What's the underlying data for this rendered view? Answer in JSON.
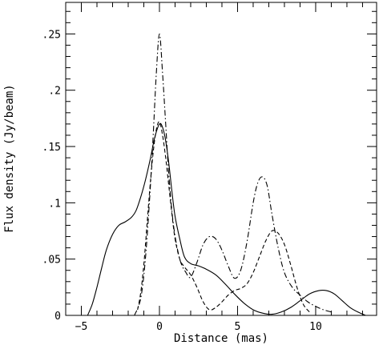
{
  "chart_data": {
    "type": "line",
    "title": "",
    "xlabel": "Distance (mas)",
    "ylabel": "Flux density (Jy/beam)",
    "xlim": [
      -6.0,
      13.9
    ],
    "ylim": [
      0,
      0.278
    ],
    "grid": false,
    "legend": "none",
    "x_ticks": [
      {
        "value": -5,
        "label": "−5"
      },
      {
        "value": 0,
        "label": "0"
      },
      {
        "value": 5,
        "label": "5"
      },
      {
        "value": 10,
        "label": "10"
      }
    ],
    "y_ticks": [
      {
        "value": 0,
        "label": "0"
      },
      {
        "value": 0.05,
        "label": ".05"
      },
      {
        "value": 0.1,
        "label": ".1"
      },
      {
        "value": 0.15,
        "label": ".15"
      },
      {
        "value": 0.2,
        "label": ".2"
      },
      {
        "value": 0.25,
        "label": ".25"
      }
    ],
    "series": [
      {
        "style": "solid",
        "x": [
          -4.6,
          -4.3,
          -4.0,
          -3.7,
          -3.4,
          -3.0,
          -2.6,
          -2.2,
          -1.8,
          -1.5,
          -1.2,
          -0.9,
          -0.6,
          -0.3,
          0.0,
          0.2,
          0.4,
          0.6,
          0.8,
          1.0,
          1.3,
          1.6,
          2.0,
          2.5,
          3.0,
          3.6,
          4.2,
          4.8,
          5.4,
          6.0,
          6.6,
          7.2,
          7.8,
          8.4,
          9.0,
          9.6,
          10.2,
          10.7,
          11.2,
          11.7,
          12.2,
          12.7,
          13.2
        ],
        "y": [
          0.0,
          0.01,
          0.025,
          0.042,
          0.058,
          0.072,
          0.08,
          0.083,
          0.087,
          0.093,
          0.105,
          0.12,
          0.138,
          0.158,
          0.17,
          0.167,
          0.155,
          0.135,
          0.11,
          0.088,
          0.068,
          0.052,
          0.046,
          0.044,
          0.041,
          0.036,
          0.028,
          0.019,
          0.011,
          0.005,
          0.002,
          0.001,
          0.003,
          0.007,
          0.013,
          0.019,
          0.022,
          0.022,
          0.019,
          0.013,
          0.007,
          0.003,
          0.0
        ]
      },
      {
        "style": "dashed",
        "x": [
          -1.4,
          -1.2,
          -1.0,
          -0.8,
          -0.6,
          -0.4,
          -0.2,
          0.0,
          0.2,
          0.4,
          0.6,
          0.8,
          1.0,
          1.3,
          1.6,
          2.0,
          2.4,
          2.8,
          3.2,
          3.6,
          4.0,
          4.4,
          4.8,
          5.2,
          5.6,
          6.0,
          6.4,
          6.8,
          7.2,
          7.6,
          8.0,
          8.4,
          8.8,
          9.2,
          9.6
        ],
        "y": [
          0.005,
          0.02,
          0.045,
          0.08,
          0.115,
          0.145,
          0.165,
          0.172,
          0.16,
          0.14,
          0.115,
          0.09,
          0.068,
          0.05,
          0.043,
          0.036,
          0.025,
          0.012,
          0.005,
          0.007,
          0.012,
          0.018,
          0.022,
          0.024,
          0.028,
          0.038,
          0.052,
          0.066,
          0.075,
          0.073,
          0.063,
          0.045,
          0.025,
          0.01,
          0.003
        ]
      },
      {
        "style": "dash-dot",
        "x": [
          -1.6,
          -1.2,
          -0.9,
          -0.6,
          -0.4,
          -0.2,
          0.0,
          0.2,
          0.4,
          0.6,
          0.9,
          1.3,
          1.7,
          2.0,
          2.4,
          2.8,
          3.2,
          3.6,
          4.0,
          4.4,
          4.8,
          5.2,
          5.6,
          6.0,
          6.3,
          6.6,
          6.9,
          7.2,
          7.6,
          8.0,
          8.5,
          9.0,
          9.5,
          10.0,
          10.5,
          11.0
        ],
        "y": [
          0.0,
          0.015,
          0.05,
          0.11,
          0.16,
          0.215,
          0.25,
          0.215,
          0.17,
          0.125,
          0.08,
          0.05,
          0.038,
          0.034,
          0.047,
          0.063,
          0.07,
          0.068,
          0.058,
          0.044,
          0.033,
          0.04,
          0.065,
          0.1,
          0.118,
          0.123,
          0.115,
          0.09,
          0.06,
          0.038,
          0.025,
          0.018,
          0.012,
          0.008,
          0.005,
          0.003
        ]
      }
    ]
  }
}
